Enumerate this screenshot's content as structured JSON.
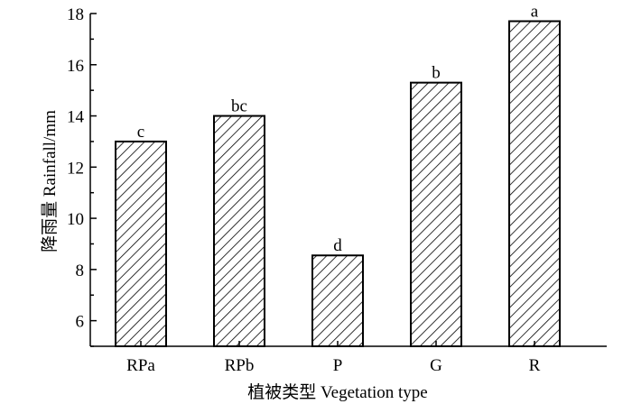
{
  "chart_data": {
    "type": "bar",
    "title": "",
    "xlabel": "植被类型 Vegetation type",
    "ylabel": "降雨量 Rainfall/mm",
    "categories": [
      "RPa",
      "RPb",
      "P",
      "G",
      "R"
    ],
    "values": [
      13.0,
      14.0,
      8.55,
      15.3,
      17.7
    ],
    "significance_labels": [
      "c",
      "bc",
      "d",
      "b",
      "a"
    ],
    "ylim": [
      5,
      18
    ],
    "yticks": [
      6,
      8,
      10,
      12,
      14,
      16,
      18
    ],
    "bar_fill": "hatched",
    "bar_color": "#000000",
    "grid": false
  }
}
